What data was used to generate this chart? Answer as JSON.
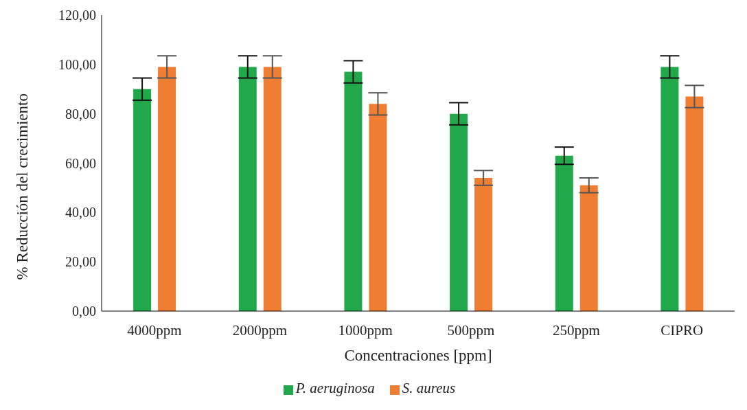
{
  "chart_data": {
    "type": "bar",
    "xlabel": "Concentraciones [ppm]",
    "ylabel": "% Reducción del crecimiento",
    "categories": [
      "4000ppm",
      "2000ppm",
      "1000ppm",
      "500ppm",
      "250ppm",
      "CIPRO"
    ],
    "series": [
      {
        "name": "P. aeruginosa",
        "color": "#21a84a",
        "values": [
          90,
          99,
          97,
          80,
          63,
          99
        ],
        "errors": [
          4.5,
          4.5,
          4.5,
          4.5,
          3.5,
          4.5
        ]
      },
      {
        "name": "S. aureus",
        "color": "#ef7d32",
        "values": [
          99,
          99,
          84,
          54,
          51,
          87
        ],
        "errors": [
          4.5,
          4.5,
          4.5,
          3,
          3,
          4.5
        ]
      }
    ],
    "ylim": [
      0,
      120
    ],
    "yticks": [
      {
        "value": 0,
        "label": "0,00"
      },
      {
        "value": 20,
        "label": "20,00"
      },
      {
        "value": 40,
        "label": "40,00"
      },
      {
        "value": 60,
        "label": "60,00"
      },
      {
        "value": 80,
        "label": "80,00"
      },
      {
        "value": 100,
        "label": "100,00"
      },
      {
        "value": 120,
        "label": "120,00"
      }
    ],
    "legend": "bottom"
  }
}
